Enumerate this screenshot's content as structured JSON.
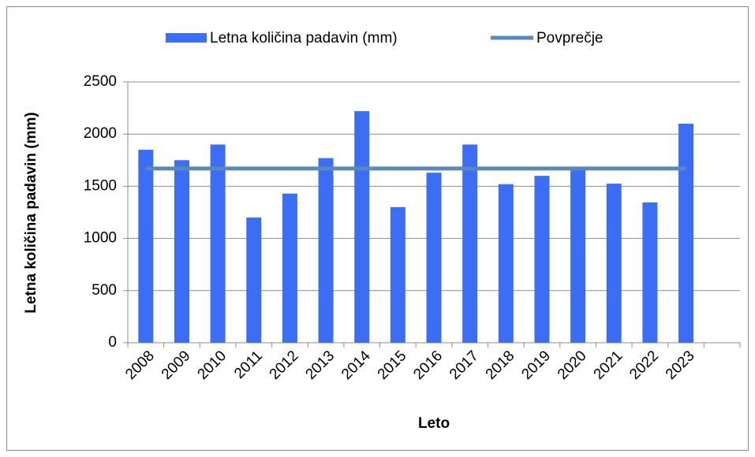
{
  "chart_data": {
    "type": "bar-line",
    "categories": [
      "2008",
      "2009",
      "2010",
      "2011",
      "2012",
      "2013",
      "2014",
      "2015",
      "2016",
      "2017",
      "2018",
      "2019",
      "2020",
      "2021",
      "2022",
      "2023",
      null
    ],
    "series": [
      {
        "name": "Letna količina padavin (mm)",
        "type": "bar",
        "color": "#3c6df5",
        "values": [
          1850,
          1750,
          1900,
          1200,
          1430,
          1770,
          2220,
          1300,
          1630,
          1900,
          1520,
          1600,
          1680,
          1525,
          1345,
          2100,
          null
        ]
      },
      {
        "name": "Povprečje",
        "type": "line",
        "color": "#5a88bb",
        "values": [
          1670,
          1670,
          1670,
          1670,
          1670,
          1670,
          1670,
          1670,
          1670,
          1670,
          1670,
          1670,
          1670,
          1670,
          1670,
          1670,
          null
        ]
      }
    ],
    "xlabel": "Leto",
    "ylabel": "Letna količina padavin (mm)",
    "ylim": [
      0,
      2500
    ],
    "yticks": [
      0,
      500,
      1000,
      1500,
      2000,
      2500
    ],
    "grid": true,
    "legend": "top"
  }
}
